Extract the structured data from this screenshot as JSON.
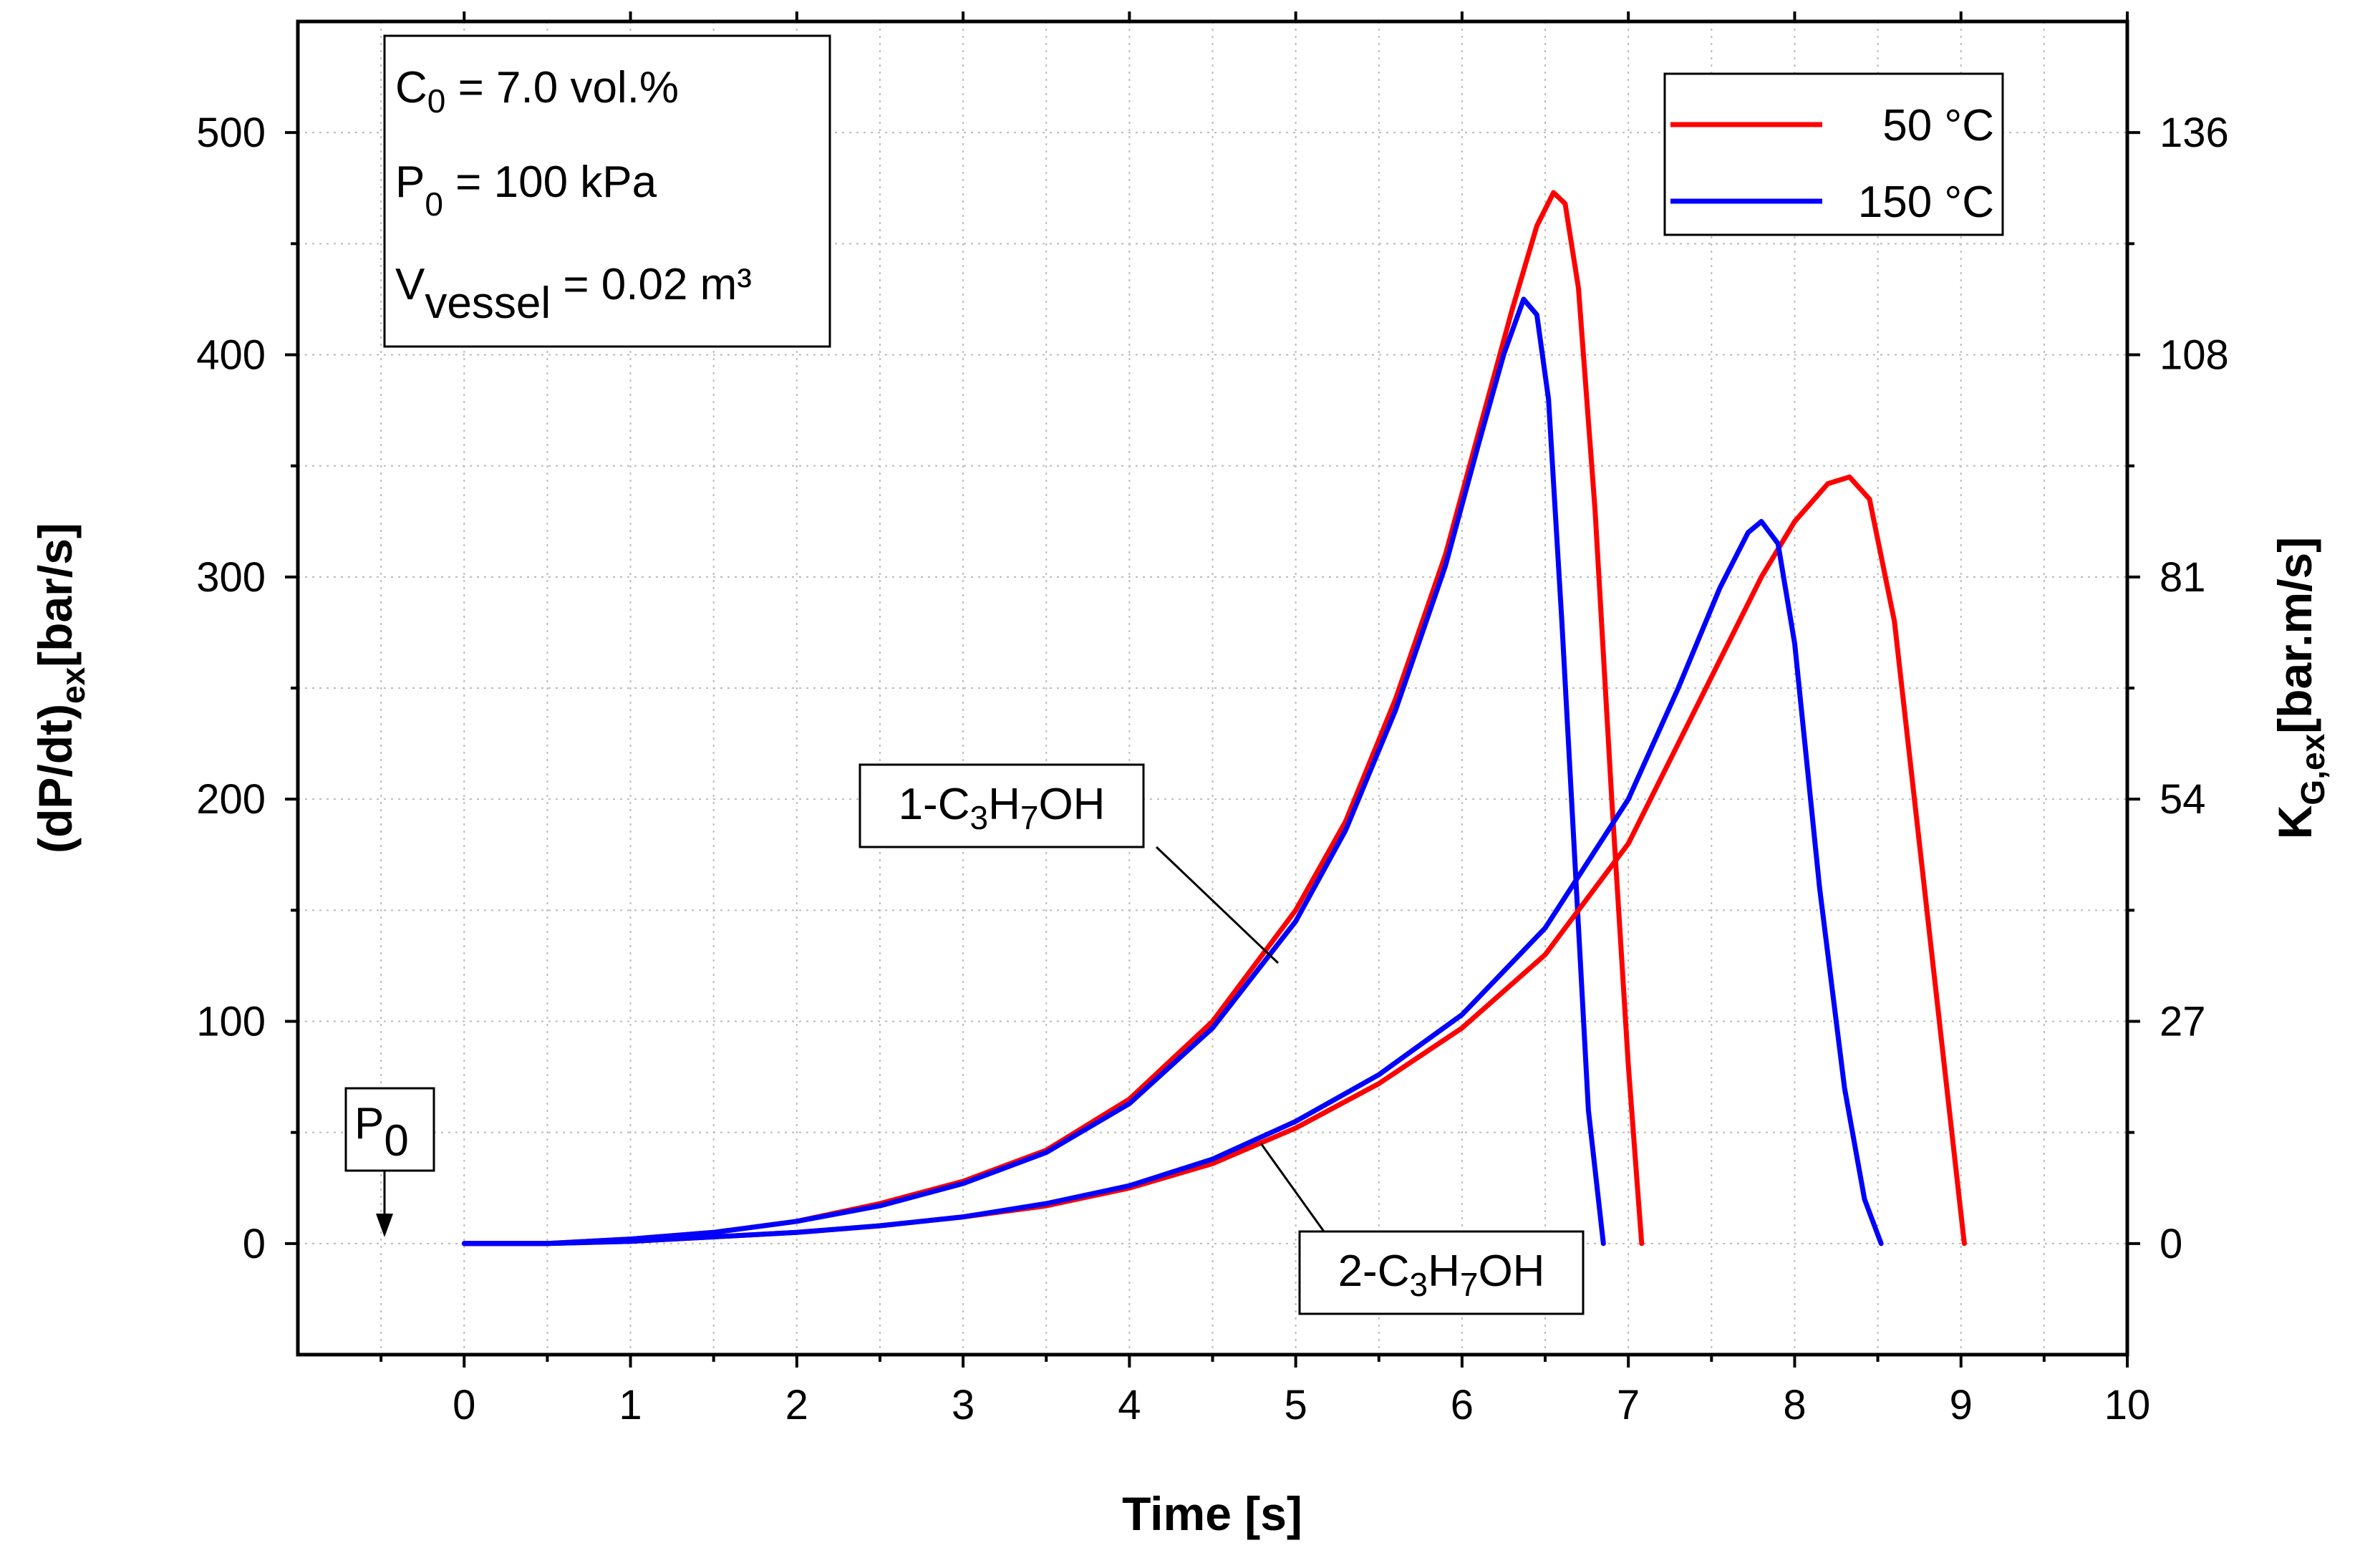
{
  "chart_data": {
    "type": "line",
    "title": "",
    "xlabel": "Time [s]",
    "ylabel": {
      "main": "(dP/dt)",
      "sub": "ex",
      "unit": "[bar/s]"
    },
    "y2label": {
      "main": "K",
      "sub": "G,ex",
      "unit": "[bar.m/s]"
    },
    "xlim": [
      -1,
      10
    ],
    "ylim": [
      -50,
      550
    ],
    "x_ticks": [
      0,
      1,
      2,
      3,
      4,
      5,
      6,
      7,
      8,
      9,
      10
    ],
    "x_tick_labels": [
      "0",
      "1",
      "2",
      "3",
      "4",
      "5",
      "6",
      "7",
      "8",
      "9",
      "10"
    ],
    "y_ticks": [
      0,
      100,
      200,
      300,
      400,
      500
    ],
    "y_tick_labels": [
      "0",
      "100",
      "200",
      "300",
      "400",
      "500"
    ],
    "y2_ticks": [
      0,
      100,
      200,
      300,
      400,
      500
    ],
    "y2_tick_labels": [
      "0",
      "27",
      "54",
      "81",
      "108",
      "136"
    ],
    "grid": true,
    "legend_position": "top-right",
    "legend": [
      {
        "label": "50 °C",
        "color": "#ff0000"
      },
      {
        "label": "150 °C",
        "color": "#0000ff"
      }
    ],
    "conditions": {
      "c0": {
        "symbol": "C",
        "sub": "0",
        "rest": " = 7.0 vol.%"
      },
      "p0": {
        "symbol": "P",
        "sub": "0",
        "rest": " = 100 kPa"
      },
      "v": {
        "symbol": "V",
        "sub": "vessel",
        "rest": " = 0.02 m³"
      }
    },
    "annotations": {
      "p0_marker": {
        "symbol": "P",
        "sub": "0"
      },
      "fuel1": {
        "pre": "1-C",
        "s1": "3",
        "mid": "H",
        "s2": "7",
        "post": "OH"
      },
      "fuel2": {
        "pre": "2-C",
        "s1": "3",
        "mid": "H",
        "s2": "7",
        "post": "OH"
      }
    },
    "series": [
      {
        "name": "1-C3H7OH, 50 °C",
        "color": "#ff0000",
        "x": [
          0,
          0.5,
          1,
          1.5,
          2,
          2.5,
          3,
          3.5,
          4,
          4.5,
          5,
          5.3,
          5.6,
          5.9,
          6.1,
          6.3,
          6.45,
          6.55,
          6.62,
          6.7,
          6.8,
          6.9,
          7.0,
          7.08
        ],
        "y": [
          0,
          0,
          2,
          5,
          10,
          18,
          28,
          42,
          65,
          100,
          150,
          190,
          245,
          310,
          365,
          420,
          458,
          473,
          468,
          430,
          330,
          200,
          80,
          0
        ]
      },
      {
        "name": "1-C3H7OH, 150 °C",
        "color": "#0000ff",
        "x": [
          0,
          0.5,
          1,
          1.5,
          2,
          2.5,
          3,
          3.5,
          4,
          4.5,
          5,
          5.3,
          5.6,
          5.9,
          6.1,
          6.25,
          6.37,
          6.45,
          6.52,
          6.6,
          6.68,
          6.76,
          6.85
        ],
        "y": [
          0,
          0,
          2,
          5,
          10,
          17,
          27,
          41,
          63,
          97,
          145,
          186,
          240,
          305,
          360,
          400,
          425,
          418,
          380,
          280,
          170,
          60,
          0
        ]
      },
      {
        "name": "2-C3H7OH, 50 °C",
        "color": "#ff0000",
        "x": [
          0,
          0.5,
          1,
          1.5,
          2,
          2.5,
          3,
          3.5,
          4,
          4.5,
          5,
          5.5,
          6,
          6.5,
          7,
          7.5,
          7.8,
          8.0,
          8.2,
          8.33,
          8.45,
          8.6,
          8.75,
          8.9,
          9.02
        ],
        "y": [
          0,
          0,
          1,
          3,
          5,
          8,
          12,
          17,
          25,
          36,
          52,
          72,
          97,
          130,
          180,
          255,
          300,
          325,
          342,
          345,
          335,
          280,
          180,
          80,
          0
        ]
      },
      {
        "name": "2-C3H7OH, 150 °C",
        "color": "#0000ff",
        "x": [
          0,
          0.5,
          1,
          1.5,
          2,
          2.5,
          3,
          3.5,
          4,
          4.5,
          5,
          5.5,
          6,
          6.5,
          7,
          7.3,
          7.55,
          7.72,
          7.8,
          7.9,
          8.0,
          8.15,
          8.3,
          8.42,
          8.52
        ],
        "y": [
          0,
          0,
          1,
          3,
          5,
          8,
          12,
          18,
          26,
          38,
          55,
          76,
          103,
          142,
          200,
          250,
          295,
          320,
          325,
          315,
          270,
          160,
          70,
          20,
          0
        ]
      }
    ]
  }
}
